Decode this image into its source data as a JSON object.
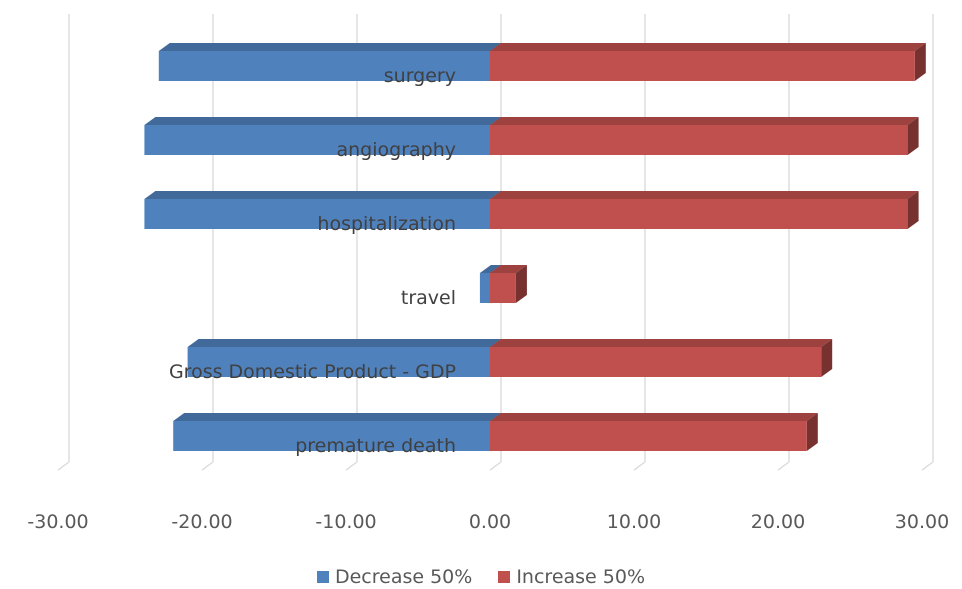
{
  "chart_data": {
    "type": "bar",
    "orientation": "horizontal",
    "style": "3d-tornado",
    "categories": [
      "surgery",
      "angiography",
      "hospitalization",
      "travel",
      "Gross Domestic Product - GDP",
      "premature death"
    ],
    "series": [
      {
        "name": "Decrease 50%",
        "color": "#4f81bd",
        "values": [
          -23.0,
          -24.0,
          -24.0,
          -0.7,
          -21.0,
          -22.0
        ]
      },
      {
        "name": "Increase 50%",
        "color": "#c0504d",
        "values": [
          29.5,
          29.0,
          29.0,
          1.8,
          23.0,
          22.0
        ]
      }
    ],
    "xlim": [
      -30,
      30
    ],
    "x_ticks": [
      "-30.00",
      "-20.00",
      "-10.00",
      "0.00",
      "10.00",
      "20.00",
      "30.00"
    ],
    "grid": true,
    "legend_position": "bottom"
  }
}
